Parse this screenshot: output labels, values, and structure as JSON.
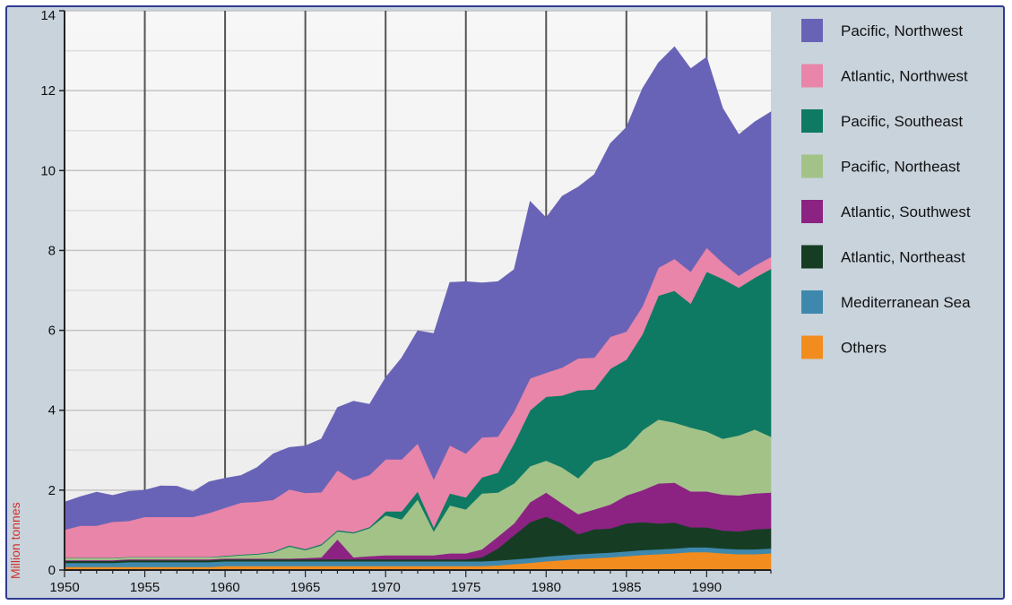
{
  "chart_data": {
    "type": "area",
    "stacked": true,
    "title": "",
    "xlabel": "",
    "ylabel": "Million tonnes",
    "xlim": [
      1950,
      1994
    ],
    "ylim": [
      0,
      14
    ],
    "xticks": [
      1950,
      1955,
      1960,
      1965,
      1970,
      1975,
      1980,
      1985,
      1990
    ],
    "yticks": [
      0,
      2,
      4,
      6,
      8,
      10,
      12,
      14
    ],
    "grid": true,
    "legend_position": "right",
    "x": [
      1950,
      1951,
      1952,
      1953,
      1954,
      1955,
      1956,
      1957,
      1958,
      1959,
      1960,
      1961,
      1962,
      1963,
      1964,
      1965,
      1966,
      1967,
      1968,
      1969,
      1970,
      1971,
      1972,
      1973,
      1974,
      1975,
      1976,
      1977,
      1978,
      1979,
      1980,
      1981,
      1982,
      1983,
      1984,
      1985,
      1986,
      1987,
      1988,
      1989,
      1990,
      1991,
      1992,
      1993,
      1994
    ],
    "series": [
      {
        "name": "Others",
        "color": "#f28c1e",
        "values": [
          0.08,
          0.08,
          0.08,
          0.08,
          0.08,
          0.08,
          0.08,
          0.08,
          0.08,
          0.08,
          0.1,
          0.1,
          0.1,
          0.1,
          0.1,
          0.1,
          0.1,
          0.1,
          0.1,
          0.1,
          0.1,
          0.1,
          0.1,
          0.1,
          0.1,
          0.1,
          0.1,
          0.12,
          0.15,
          0.18,
          0.22,
          0.25,
          0.28,
          0.3,
          0.32,
          0.35,
          0.38,
          0.4,
          0.42,
          0.45,
          0.45,
          0.42,
          0.4,
          0.4,
          0.42
        ]
      },
      {
        "name": "Mediterranean Sea",
        "color": "#3f88ad",
        "values": [
          0.1,
          0.1,
          0.1,
          0.1,
          0.12,
          0.12,
          0.12,
          0.12,
          0.12,
          0.12,
          0.12,
          0.12,
          0.12,
          0.12,
          0.12,
          0.12,
          0.12,
          0.12,
          0.12,
          0.12,
          0.12,
          0.12,
          0.12,
          0.12,
          0.12,
          0.12,
          0.12,
          0.12,
          0.12,
          0.12,
          0.12,
          0.12,
          0.12,
          0.12,
          0.12,
          0.12,
          0.12,
          0.12,
          0.12,
          0.12,
          0.12,
          0.12,
          0.12,
          0.12,
          0.12
        ]
      },
      {
        "name": "Atlantic, Northeast",
        "color": "#163d23",
        "values": [
          0.05,
          0.05,
          0.05,
          0.05,
          0.05,
          0.05,
          0.05,
          0.05,
          0.05,
          0.05,
          0.05,
          0.05,
          0.05,
          0.05,
          0.05,
          0.05,
          0.05,
          0.05,
          0.05,
          0.05,
          0.05,
          0.05,
          0.05,
          0.05,
          0.05,
          0.05,
          0.1,
          0.3,
          0.6,
          0.9,
          1.0,
          0.8,
          0.5,
          0.6,
          0.6,
          0.7,
          0.7,
          0.65,
          0.65,
          0.5,
          0.5,
          0.45,
          0.45,
          0.5,
          0.5
        ]
      },
      {
        "name": "Atlantic, Southwest",
        "color": "#8c2383",
        "values": [
          0.02,
          0.02,
          0.02,
          0.02,
          0.02,
          0.02,
          0.02,
          0.02,
          0.02,
          0.02,
          0.02,
          0.02,
          0.02,
          0.02,
          0.02,
          0.03,
          0.05,
          0.5,
          0.05,
          0.08,
          0.1,
          0.1,
          0.1,
          0.1,
          0.15,
          0.15,
          0.2,
          0.3,
          0.3,
          0.5,
          0.6,
          0.5,
          0.5,
          0.5,
          0.6,
          0.7,
          0.8,
          1.0,
          1.0,
          0.9,
          0.9,
          0.9,
          0.9,
          0.9,
          0.9
        ]
      },
      {
        "name": "Pacific, Northeast",
        "color": "#a3c288",
        "values": [
          0.05,
          0.05,
          0.05,
          0.05,
          0.05,
          0.05,
          0.05,
          0.05,
          0.05,
          0.05,
          0.05,
          0.08,
          0.1,
          0.15,
          0.3,
          0.2,
          0.3,
          0.2,
          0.6,
          0.7,
          1.0,
          0.9,
          1.4,
          0.6,
          1.2,
          1.1,
          1.4,
          1.1,
          1.0,
          0.9,
          0.8,
          0.9,
          0.9,
          1.2,
          1.2,
          1.2,
          1.5,
          1.6,
          1.5,
          1.6,
          1.5,
          1.4,
          1.5,
          1.6,
          1.4
        ]
      },
      {
        "name": "Pacific, Southeast",
        "color": "#0e7a64",
        "values": [
          0.01,
          0.01,
          0.01,
          0.01,
          0.01,
          0.01,
          0.01,
          0.01,
          0.01,
          0.01,
          0.02,
          0.02,
          0.02,
          0.02,
          0.03,
          0.03,
          0.03,
          0.03,
          0.03,
          0.03,
          0.1,
          0.2,
          0.2,
          0.1,
          0.3,
          0.3,
          0.4,
          0.5,
          1.0,
          1.4,
          1.6,
          1.8,
          2.2,
          1.8,
          2.2,
          2.2,
          2.4,
          3.1,
          3.3,
          3.1,
          4.0,
          4.0,
          3.7,
          3.8,
          4.2
        ]
      },
      {
        "name": "Atlantic, Northwest",
        "color": "#e985a8",
        "values": [
          0.7,
          0.8,
          0.8,
          0.9,
          0.9,
          1.0,
          1.0,
          1.0,
          1.0,
          1.1,
          1.2,
          1.3,
          1.3,
          1.3,
          1.4,
          1.4,
          1.3,
          1.5,
          1.3,
          1.3,
          1.3,
          1.3,
          1.2,
          1.2,
          1.2,
          1.1,
          1.0,
          0.9,
          0.8,
          0.8,
          0.6,
          0.7,
          0.8,
          0.8,
          0.8,
          0.7,
          0.7,
          0.7,
          0.8,
          0.8,
          0.6,
          0.4,
          0.3,
          0.3,
          0.3
        ]
      },
      {
        "name": "Pacific, Northwest",
        "color": "#6963b7",
        "values": [
          0.69,
          0.73,
          0.84,
          0.66,
          0.74,
          0.67,
          0.78,
          0.77,
          0.63,
          0.78,
          0.74,
          0.68,
          0.86,
          1.15,
          1.05,
          1.18,
          1.33,
          1.57,
          1.98,
          1.77,
          2.05,
          2.54,
          2.82,
          3.65,
          4.08,
          4.3,
          3.87,
          3.88,
          3.55,
          4.43,
          3.88,
          4.29,
          4.29,
          4.58,
          4.84,
          5.11,
          5.45,
          5.13,
          5.31,
          5.08,
          4.77,
          3.87,
          3.53,
          3.6,
          3.63
        ]
      }
    ]
  }
}
